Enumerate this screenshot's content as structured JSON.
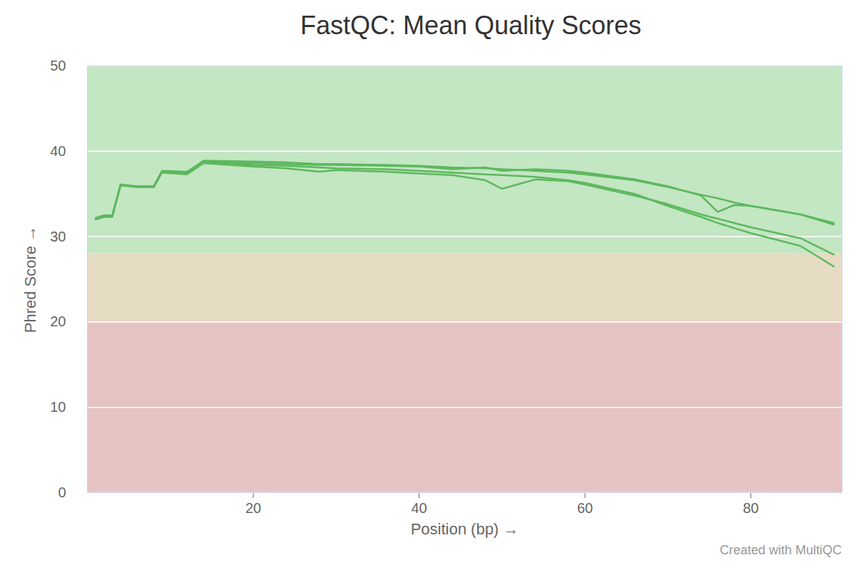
{
  "chart_data": {
    "type": "line",
    "title": "FastQC: Mean Quality Scores",
    "x_label": "Position (bp)",
    "y_label": "Phred Score",
    "caption": "Created with MultiQC",
    "xlim": [
      0,
      91
    ],
    "xticks": [
      20,
      40,
      60,
      80
    ],
    "ylim": [
      0,
      50
    ],
    "yticks": [
      0,
      10,
      20,
      30,
      40,
      50
    ],
    "grid": true,
    "bands": [
      {
        "from": 28,
        "to": 50,
        "color": "#c3e6c3"
      },
      {
        "from": 20,
        "to": 28,
        "color": "#e6dcc3"
      },
      {
        "from": 0,
        "to": 20,
        "color": "#e6c3c3"
      }
    ],
    "x": [
      1,
      2,
      3,
      4,
      6,
      8,
      9,
      12,
      14,
      20,
      24,
      28,
      30,
      36,
      40,
      44,
      48,
      50,
      54,
      58,
      60,
      66,
      70,
      74,
      76,
      78,
      80,
      86,
      90
    ],
    "series": [
      {
        "color": "#5cb85c",
        "values": [
          32.2,
          32.5,
          32.5,
          36.0,
          35.9,
          35.9,
          37.6,
          37.5,
          38.9,
          38.8,
          38.7,
          38.5,
          38.5,
          38.4,
          38.3,
          38.1,
          38.0,
          37.9,
          37.7,
          37.5,
          37.3,
          36.6,
          35.8,
          34.9,
          34.5,
          34.0,
          33.6,
          32.6,
          31.6
        ]
      },
      {
        "color": "#5cb85c",
        "values": [
          32.1,
          32.4,
          32.4,
          36.1,
          35.8,
          35.8,
          37.6,
          37.4,
          38.7,
          38.6,
          38.5,
          38.4,
          38.4,
          38.3,
          38.2,
          37.9,
          38.1,
          37.7,
          37.9,
          37.7,
          37.5,
          36.7,
          35.9,
          34.8,
          32.9,
          33.7,
          33.6,
          32.6,
          31.4
        ]
      },
      {
        "color": "#5cb85c",
        "values": [
          32.0,
          32.3,
          32.3,
          36.0,
          35.8,
          35.8,
          37.5,
          37.3,
          38.6,
          38.2,
          38.0,
          37.6,
          37.8,
          37.6,
          37.4,
          37.2,
          36.6,
          35.6,
          36.7,
          36.5,
          36.1,
          34.8,
          33.8,
          32.6,
          32.1,
          31.6,
          31.1,
          29.8,
          27.9
        ]
      },
      {
        "color": "#5cb85c",
        "values": [
          32.1,
          32.4,
          32.4,
          36.1,
          35.9,
          35.9,
          37.7,
          37.6,
          38.8,
          38.4,
          38.3,
          38.1,
          38.0,
          37.9,
          37.7,
          37.5,
          37.3,
          37.2,
          37.0,
          36.6,
          36.3,
          35.0,
          33.6,
          32.3,
          31.6,
          31.0,
          30.4,
          28.9,
          26.5
        ]
      }
    ]
  }
}
